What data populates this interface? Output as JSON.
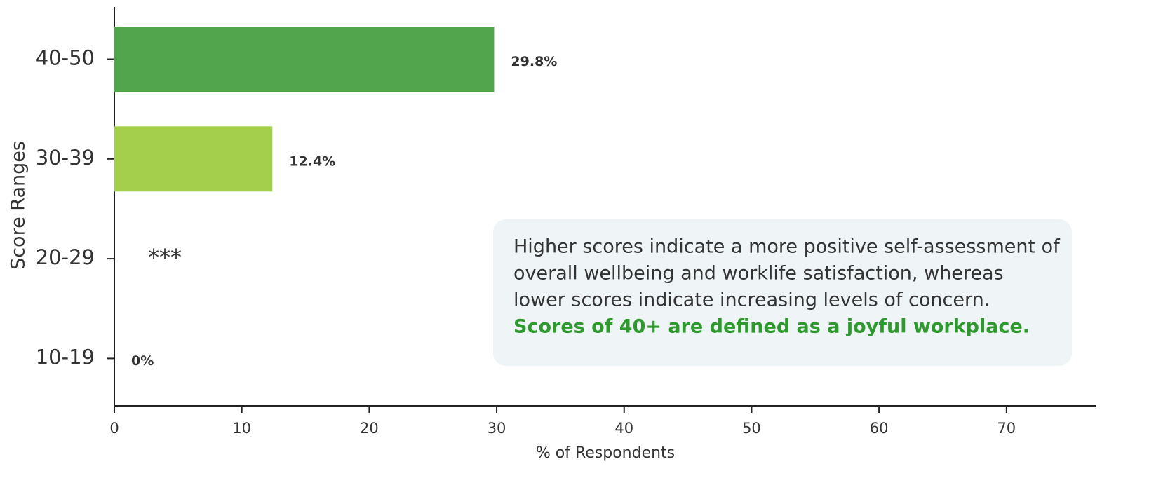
{
  "chart_data": {
    "type": "barh",
    "categories": [
      "40-50",
      "30-39",
      "20-29",
      "10-19"
    ],
    "values": [
      29.8,
      12.4,
      null,
      0
    ],
    "value_labels": [
      "29.8%",
      "12.4%",
      "***",
      "0%"
    ],
    "colors": [
      "#52a54c",
      "#a3cf4d",
      null,
      null
    ],
    "xlim": [
      0,
      77
    ],
    "xticks": [
      0,
      10,
      20,
      30,
      40,
      50,
      60,
      70
    ],
    "xlabel": "% of Respondents",
    "ylabel": "Score Ranges",
    "annotation": {
      "lines": [
        "Higher scores indicate a more positive self-assessment of",
        "overall wellbeing and worklife satisfaction, whereas",
        "lower scores indicate increasing levels of concern."
      ],
      "highlight": "Scores of 40+ are defined as a joyful workplace."
    }
  }
}
